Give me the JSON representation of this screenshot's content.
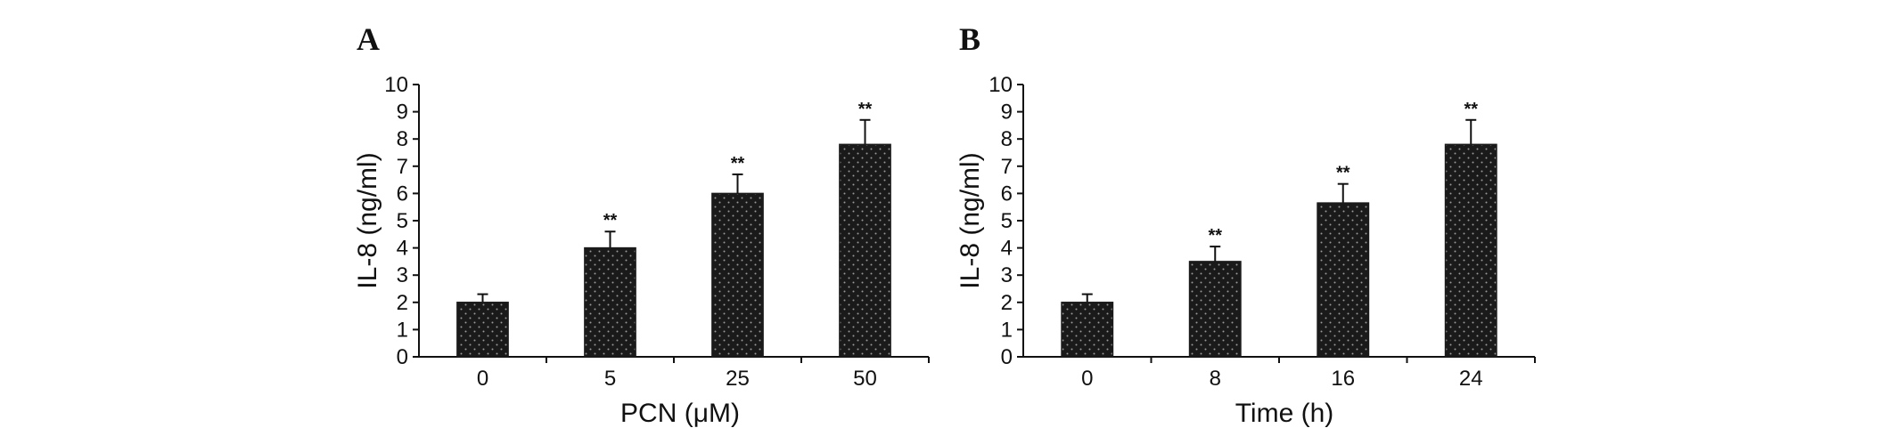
{
  "chart_data": [
    {
      "type": "bar",
      "panel_label": "A",
      "categories": [
        "0",
        "5",
        "25",
        "50"
      ],
      "values": [
        2.0,
        4.0,
        6.0,
        7.8
      ],
      "errors": [
        0.3,
        0.6,
        0.7,
        0.9
      ],
      "significance": [
        "",
        "**",
        "**",
        "**"
      ],
      "xlabel": "PCN (μM)",
      "ylabel": "IL-8 (ng/ml)",
      "ylim": [
        0,
        10
      ],
      "yticks": [
        "0",
        "1",
        "2",
        "3",
        "4",
        "5",
        "6",
        "7",
        "8",
        "9",
        "10"
      ],
      "grid": false,
      "bar_color": "#1a1a1a"
    },
    {
      "type": "bar",
      "panel_label": "B",
      "categories": [
        "0",
        "8",
        "16",
        "24"
      ],
      "values": [
        2.0,
        3.5,
        5.65,
        7.8
      ],
      "errors": [
        0.3,
        0.55,
        0.7,
        0.9
      ],
      "significance": [
        "",
        "**",
        "**",
        "**"
      ],
      "xlabel": "Time (h)",
      "ylabel": "IL-8 (ng/ml)",
      "ylim": [
        0,
        10
      ],
      "yticks": [
        "0",
        "1",
        "2",
        "3",
        "4",
        "5",
        "6",
        "7",
        "8",
        "9",
        "10"
      ],
      "grid": false,
      "bar_color": "#1a1a1a"
    }
  ]
}
